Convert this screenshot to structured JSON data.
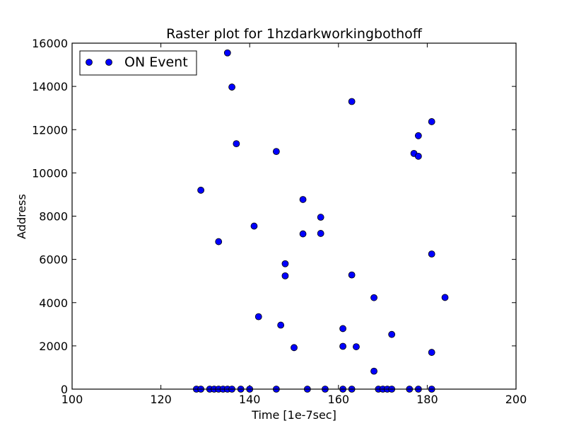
{
  "chart_data": {
    "type": "scatter",
    "title": "Raster plot for 1hzdarkworkingbothoff",
    "xlabel": "Time [1e-7sec]",
    "ylabel": "Address",
    "xlim": [
      100,
      200
    ],
    "ylim": [
      0,
      16000
    ],
    "xticks": [
      100,
      120,
      140,
      160,
      180,
      200
    ],
    "yticks": [
      0,
      2000,
      4000,
      6000,
      8000,
      10000,
      12000,
      14000,
      16000
    ],
    "grid": false,
    "legend_position": "top-left",
    "series": [
      {
        "name": "ON Event",
        "color": "#0000ff",
        "marker": "circle",
        "x": [
          128,
          129,
          129,
          131,
          132,
          133,
          133,
          134,
          135,
          135,
          136,
          136,
          137,
          138,
          140,
          141,
          142,
          146,
          146,
          147,
          148,
          148,
          150,
          152,
          152,
          153,
          156,
          156,
          157,
          161,
          161,
          161,
          163,
          163,
          163,
          164,
          168,
          168,
          169,
          170,
          171,
          172,
          172,
          176,
          177,
          178,
          178,
          178,
          181,
          181,
          181,
          181,
          184
        ],
        "y": [
          0,
          0,
          9200,
          0,
          0,
          0,
          6820,
          0,
          0,
          15550,
          0,
          13970,
          11350,
          0,
          0,
          7540,
          3350,
          0,
          10990,
          2960,
          5800,
          5240,
          1920,
          8770,
          7180,
          0,
          7950,
          7200,
          0,
          0,
          2800,
          1980,
          0,
          5280,
          13300,
          1960,
          830,
          4230,
          0,
          0,
          0,
          0,
          2530,
          0,
          10900,
          0,
          11720,
          10770,
          0,
          12370,
          6250,
          1700,
          4240
        ]
      }
    ]
  }
}
